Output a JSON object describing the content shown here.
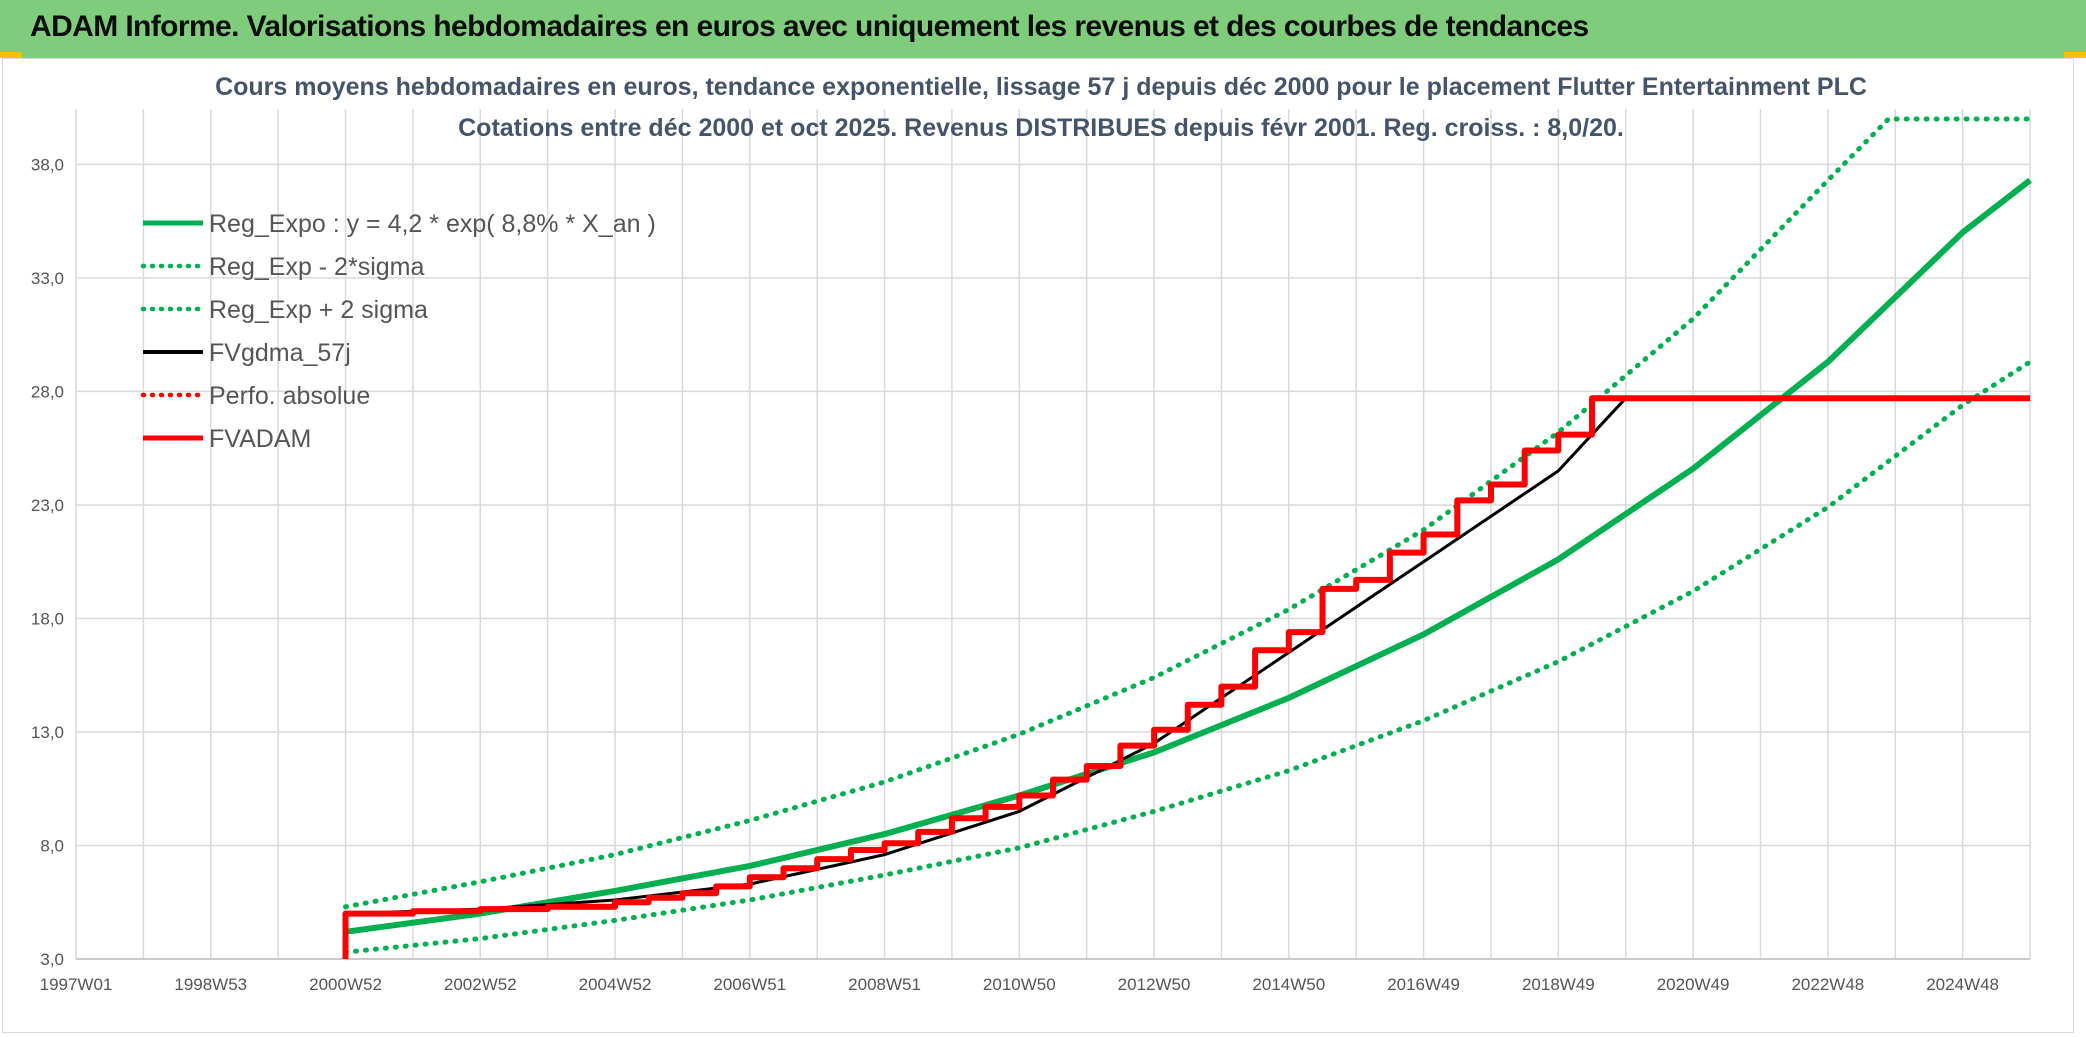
{
  "header": {
    "title": "ADAM Informe. Valorisations hebdomadaires en euros avec uniquement les revenus et des courbes de tendances",
    "background_color": "#7fcd7c",
    "corner_color": "#f2c300"
  },
  "chart_data": {
    "type": "line",
    "title_line1": "Cours moyens hebdomadaires en euros, tendance exponentielle, lissage 57 j depuis déc 2000 pour le placement Flutter Entertainment PLC",
    "title_line2": "Cotations entre déc 2000 et oct 2025. Revenus DISTRIBUES depuis févr 2001. Reg. croiss. : 8,0/20.",
    "x_tick_labels": [
      "1997W01",
      "1998W53",
      "2000W52",
      "2002W52",
      "2004W52",
      "2006W51",
      "2008W51",
      "2010W50",
      "2012W50",
      "2014W50",
      "2016W49",
      "2018W49",
      "2020W49",
      "2022W48",
      "2024W48"
    ],
    "x_tick_years": [
      1997.0,
      1999.0,
      2001.0,
      2003.0,
      2005.0,
      2007.0,
      2009.0,
      2011.0,
      2013.0,
      2015.0,
      2017.0,
      2019.0,
      2021.0,
      2023.0,
      2025.0
    ],
    "x_range": [
      1997.0,
      2026.0
    ],
    "y_tick_labels": [
      "3,0",
      "8,0",
      "13,0",
      "18,0",
      "23,0",
      "28,0",
      "33,0",
      "38,0"
    ],
    "y_ticks": [
      3,
      8,
      13,
      18,
      23,
      28,
      33,
      38
    ],
    "ylim": [
      3,
      40
    ],
    "grid": true,
    "legend_position": "top-left",
    "series": [
      {
        "name": "Reg_Expo : y = 4,2 * exp( 8,8% *  X_an )",
        "color": "#00b050",
        "style": "solid",
        "width": 6,
        "x": [
          2001.0,
          2003.0,
          2005.0,
          2007.0,
          2009.0,
          2011.0,
          2013.0,
          2015.0,
          2017.0,
          2019.0,
          2021.0,
          2023.0,
          2025.0,
          2026.0
        ],
        "y": [
          4.2,
          5.0,
          6.0,
          7.1,
          8.5,
          10.2,
          12.1,
          14.5,
          17.3,
          20.6,
          24.6,
          29.3,
          35.0,
          37.3
        ]
      },
      {
        "name": "Reg_Exp - 2*sigma",
        "color": "#00b050",
        "style": "dotted",
        "width": 5,
        "x": [
          2001.0,
          2003.0,
          2005.0,
          2007.0,
          2009.0,
          2011.0,
          2013.0,
          2015.0,
          2017.0,
          2019.0,
          2021.0,
          2023.0,
          2025.0,
          2026.0
        ],
        "y": [
          3.3,
          3.9,
          4.7,
          5.6,
          6.7,
          7.9,
          9.5,
          11.3,
          13.5,
          16.1,
          19.2,
          22.9,
          27.4,
          29.3
        ]
      },
      {
        "name": "Reg_Exp + 2 sigma",
        "color": "#00b050",
        "style": "dotted",
        "width": 5,
        "x": [
          2001.0,
          2003.0,
          2005.0,
          2007.0,
          2009.0,
          2011.0,
          2013.0,
          2015.0,
          2017.0,
          2019.0,
          2021.0,
          2023.0,
          2023.9,
          2026.0
        ],
        "y": [
          5.3,
          6.4,
          7.6,
          9.1,
          10.8,
          12.9,
          15.4,
          18.4,
          21.9,
          26.2,
          31.2,
          37.3,
          40.0,
          40.0
        ]
      },
      {
        "name": "FVgdma_57j",
        "color": "#000000",
        "style": "solid",
        "width": 3,
        "x": [
          2001.0,
          2003.0,
          2005.0,
          2007.0,
          2009.0,
          2011.0,
          2013.0,
          2015.0,
          2017.0,
          2019.0,
          2020.0,
          2026.0
        ],
        "y": [
          5.0,
          5.2,
          5.6,
          6.3,
          7.6,
          9.5,
          12.5,
          16.5,
          20.5,
          24.5,
          27.7,
          27.7
        ]
      },
      {
        "name": "Perfo. absolue",
        "color": "#ff0000",
        "style": "dotted",
        "width": 3,
        "x": [],
        "y": []
      },
      {
        "name": "FVADAM",
        "color": "#ff0000",
        "style": "step",
        "width": 6,
        "x": [
          2001.0,
          2001.0,
          2002.0,
          2003.0,
          2004.0,
          2005.0,
          2005.5,
          2006.0,
          2006.5,
          2007.0,
          2007.5,
          2008.0,
          2008.5,
          2009.0,
          2009.5,
          2010.0,
          2010.5,
          2011.0,
          2011.5,
          2012.0,
          2012.5,
          2013.0,
          2013.5,
          2014.0,
          2014.5,
          2015.0,
          2015.5,
          2016.0,
          2016.5,
          2017.0,
          2017.5,
          2018.0,
          2018.5,
          2019.0,
          2019.5,
          2020.0,
          2026.0
        ],
        "y": [
          3.0,
          5.0,
          5.1,
          5.2,
          5.3,
          5.5,
          5.7,
          5.9,
          6.2,
          6.6,
          7.0,
          7.4,
          7.8,
          8.1,
          8.6,
          9.2,
          9.7,
          10.2,
          10.9,
          11.5,
          12.4,
          13.1,
          14.2,
          15.0,
          16.6,
          17.4,
          19.3,
          19.7,
          20.9,
          21.7,
          23.2,
          23.9,
          25.4,
          26.1,
          27.7,
          27.7,
          27.7
        ]
      }
    ]
  }
}
